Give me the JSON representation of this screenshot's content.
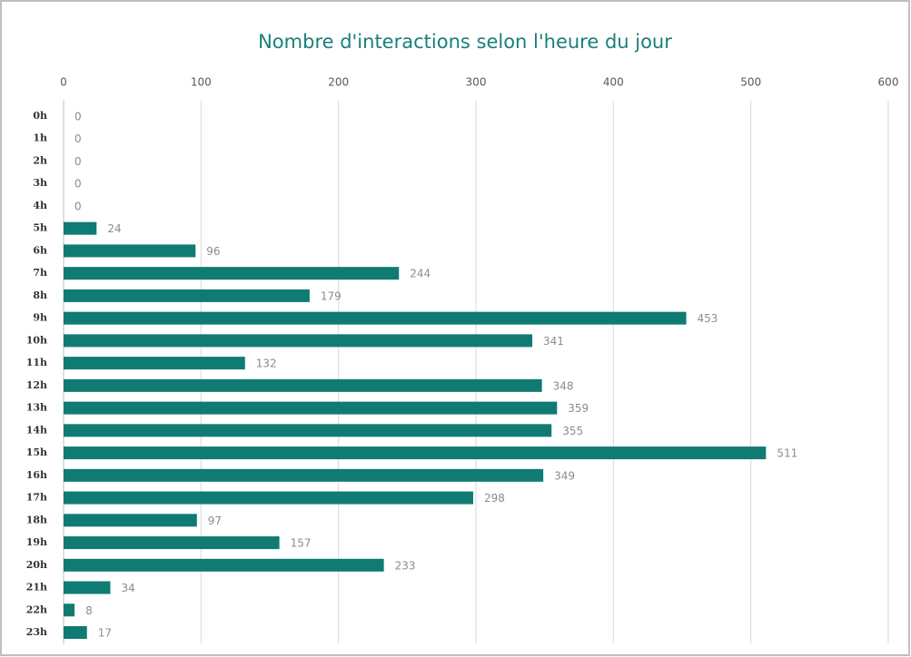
{
  "chart_data": {
    "type": "bar",
    "orientation": "horizontal",
    "title": "Nombre d'interactions selon l'heure du jour",
    "categories": [
      "0h",
      "1h",
      "2h",
      "3h",
      "4h",
      "5h",
      "6h",
      "7h",
      "8h",
      "9h",
      "10h",
      "11h",
      "12h",
      "13h",
      "14h",
      "15h",
      "16h",
      "17h",
      "18h",
      "19h",
      "20h",
      "21h",
      "22h",
      "23h"
    ],
    "values": [
      0,
      0,
      0,
      0,
      0,
      24,
      96,
      244,
      179,
      453,
      341,
      132,
      348,
      359,
      355,
      511,
      349,
      298,
      97,
      157,
      233,
      34,
      8,
      17
    ],
    "color": "#0f7b73",
    "xlim": [
      0,
      600
    ],
    "xticks": [
      0,
      100,
      200,
      300,
      400,
      500,
      600
    ],
    "grid": true
  }
}
